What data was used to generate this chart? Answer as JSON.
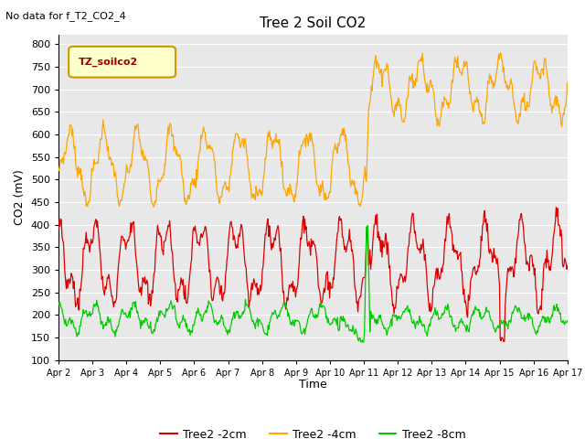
{
  "title": "Tree 2 Soil CO2",
  "no_data_text": "No data for f_T2_CO2_4",
  "ylabel": "CO2 (mV)",
  "xlabel": "Time",
  "legend_label": "TZ_soilco2",
  "ylim": [
    100,
    820
  ],
  "yticks": [
    100,
    150,
    200,
    250,
    300,
    350,
    400,
    450,
    500,
    550,
    600,
    650,
    700,
    750,
    800
  ],
  "xtick_labels": [
    "Apr 2",
    "Apr 3",
    "Apr 4",
    "Apr 5",
    "Apr 6",
    "Apr 7",
    "Apr 8",
    "Apr 9",
    "Apr 10",
    "Apr 11",
    "Apr 12",
    "Apr 13",
    "Apr 14",
    "Apr 15",
    "Apr 16",
    "Apr 17"
  ],
  "colors": {
    "red": "#DD0000",
    "orange": "#FFA500",
    "green": "#00CC00",
    "bg": "#E8E8E8",
    "legend_box_bg": "#FFFFCC",
    "legend_box_edge": "#CC9900"
  },
  "series_labels": [
    "Tree2 -2cm",
    "Tree2 -4cm",
    "Tree2 -8cm"
  ],
  "figsize": [
    6.4,
    4.8
  ],
  "dpi": 100
}
